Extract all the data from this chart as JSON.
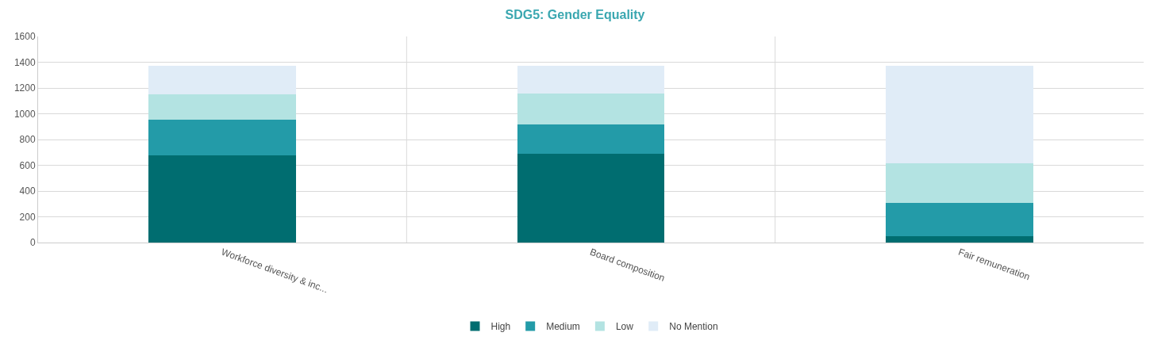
{
  "chart_data": {
    "type": "bar",
    "title": "SDG5: Gender Equality",
    "stacked": true,
    "categories": [
      "Workforce diversity & inc...",
      "Board composition",
      "Fair remuneration"
    ],
    "series": [
      {
        "name": "High",
        "color": "#006d70",
        "values": [
          680,
          690,
          50
        ]
      },
      {
        "name": "Medium",
        "color": "#239ba8",
        "values": [
          275,
          225,
          260
        ]
      },
      {
        "name": "Low",
        "color": "#b3e3e2",
        "values": [
          195,
          245,
          305
        ]
      },
      {
        "name": "No Mention",
        "color": "#e0ecf7",
        "values": [
          220,
          210,
          755
        ]
      }
    ],
    "ylim": [
      0,
      1600
    ],
    "yticks": [
      0,
      200,
      400,
      600,
      800,
      1000,
      1200,
      1400,
      1600
    ],
    "grid": true,
    "legend": "bottom"
  }
}
